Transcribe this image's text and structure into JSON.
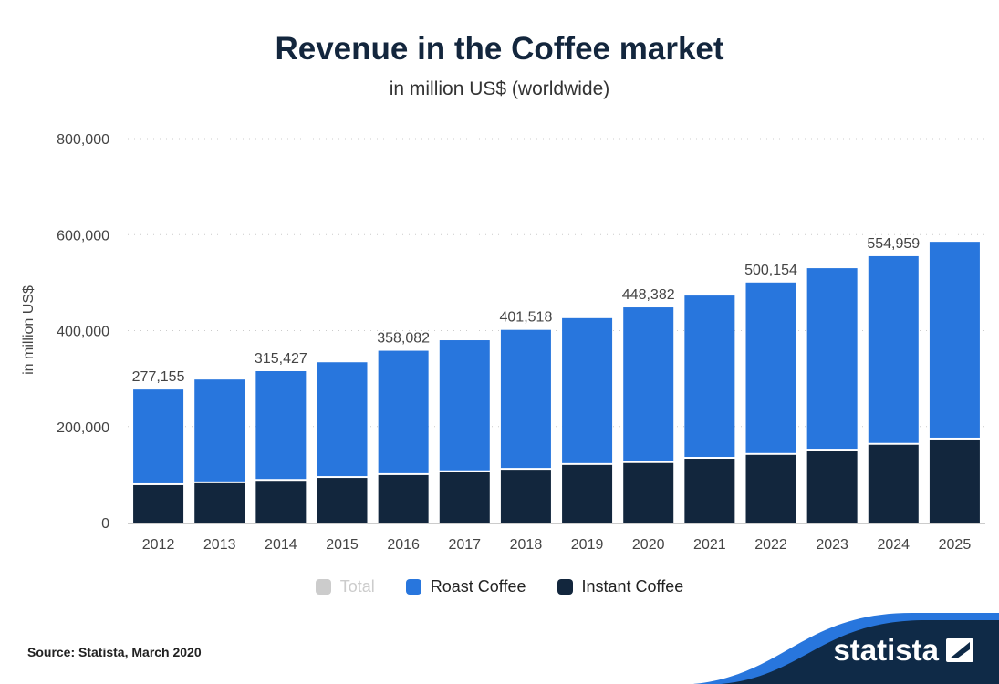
{
  "title": "Revenue in the Coffee market",
  "subtitle": "in million US$ (worldwide)",
  "source": "Source: Statista, March 2020",
  "logo": "statista",
  "colors": {
    "total": "#cccccc",
    "roast": "#2876dd",
    "instant": "#12263d",
    "footer_dark": "#0f2a47",
    "footer_accent": "#2876dd"
  },
  "chart_data": {
    "type": "bar",
    "stacked": true,
    "title": "Revenue in the Coffee market",
    "subtitle": "in million US$ (worldwide)",
    "ylabel": "in million US$",
    "xlabel": "",
    "ylim": [
      0,
      800000
    ],
    "yticks": [
      "0",
      "200,000",
      "400,000",
      "600,000",
      "800,000"
    ],
    "ytick_values": [
      0,
      200000,
      400000,
      600000,
      800000
    ],
    "grid": true,
    "legend_position": "bottom",
    "categories": [
      "2012",
      "2013",
      "2014",
      "2015",
      "2016",
      "2017",
      "2018",
      "2019",
      "2020",
      "2021",
      "2022",
      "2023",
      "2024",
      "2025"
    ],
    "series": [
      {
        "name": "Total",
        "hidden": true,
        "values": [
          277155,
          298000,
          315427,
          334000,
          358082,
          380000,
          401518,
          426000,
          448382,
          473000,
          500154,
          530000,
          554959,
          585000
        ]
      },
      {
        "name": "Roast Coffee",
        "values": [
          199155,
          216000,
          228427,
          241000,
          259082,
          275000,
          291518,
          306000,
          324382,
          340000,
          359154,
          380000,
          392959,
          412000
        ]
      },
      {
        "name": "Instant Coffee",
        "values": [
          78000,
          82000,
          87000,
          93000,
          99000,
          105000,
          110000,
          120000,
          124000,
          133000,
          141000,
          150000,
          162000,
          173000
        ]
      }
    ],
    "data_labels": [
      "277,155",
      "",
      "315,427",
      "",
      "358,082",
      "",
      "401,518",
      "",
      "448,382",
      "",
      "500,154",
      "",
      "554,959",
      ""
    ]
  }
}
